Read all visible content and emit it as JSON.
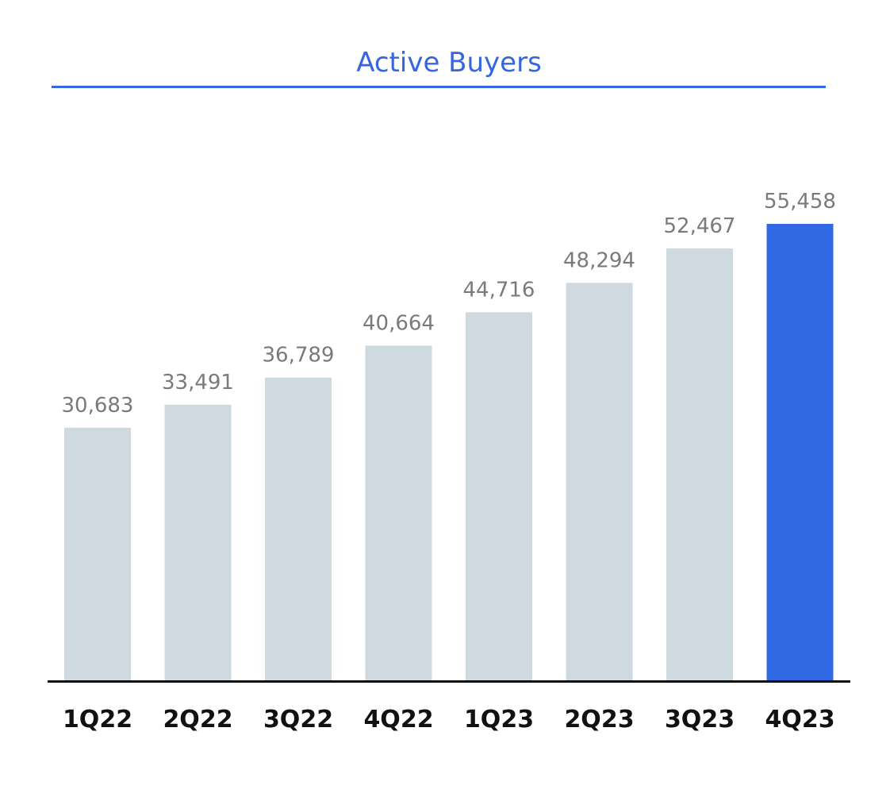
{
  "chart_data": {
    "type": "bar",
    "title": "Active Buyers",
    "xlabel": "",
    "ylabel": "",
    "categories": [
      "1Q22",
      "2Q22",
      "3Q22",
      "4Q22",
      "1Q23",
      "2Q23",
      "3Q23",
      "4Q23"
    ],
    "values": [
      30683,
      33491,
      36789,
      40664,
      44716,
      48294,
      52467,
      55458
    ],
    "value_labels": [
      "30,683",
      "33,491",
      "36,789",
      "40,664",
      "44,716",
      "48,294",
      "52,467",
      "55,458"
    ],
    "highlight_index": 7,
    "ylim": [
      0,
      55458
    ],
    "grid": false,
    "legend": "none",
    "colors": {
      "title": "#3366e0",
      "title_rule": "#3366e0",
      "bar": "#cfd9e0",
      "bar_highlight": "#3169e3",
      "value_label": "#7a7a7a",
      "tick_label": "#111111",
      "axis": "#111111"
    }
  }
}
